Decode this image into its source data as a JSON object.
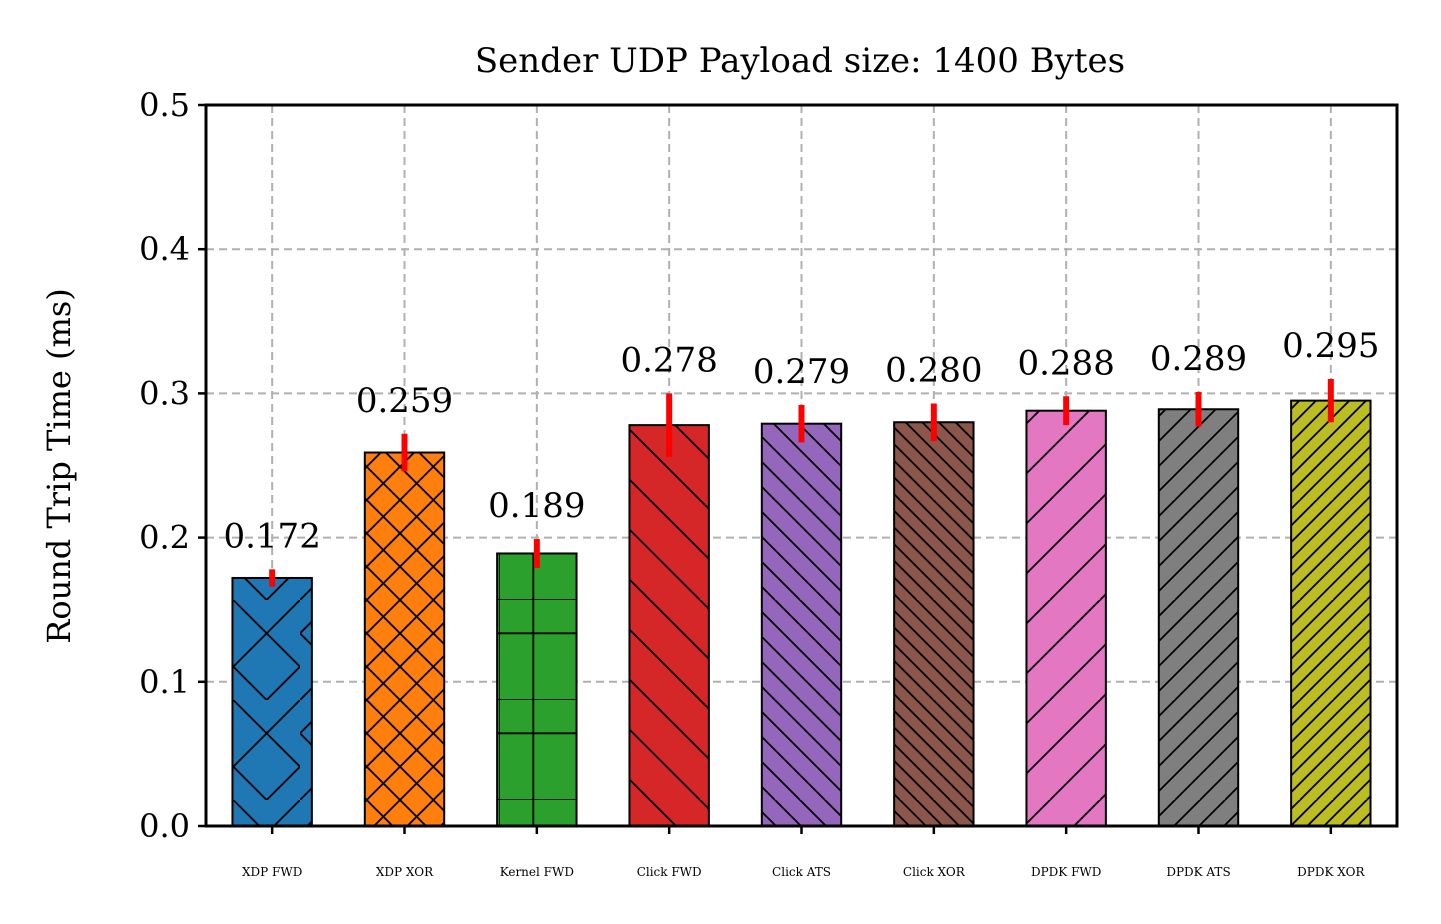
{
  "chart_data": {
    "type": "bar",
    "title": "Sender UDP Payload size: 1400 Bytes",
    "xlabel": "",
    "ylabel": "Round Trip Time (ms)",
    "ylim": [
      0,
      0.5
    ],
    "yticks": [
      "0.0",
      "0.1",
      "0.2",
      "0.3",
      "0.4",
      "0.5"
    ],
    "grid": true,
    "legend": "none",
    "categories": [
      "XDP FWD",
      "XDP XOR",
      "Kernel FWD",
      "Click FWD",
      "Click ATS",
      "Click XOR",
      "DPDK FWD",
      "DPDK ATS",
      "DPDK XOR"
    ],
    "values": [
      0.172,
      0.259,
      0.189,
      0.278,
      0.279,
      0.28,
      0.288,
      0.289,
      0.295
    ],
    "value_labels": [
      "0.172",
      "0.259",
      "0.189",
      "0.278",
      "0.279",
      "0.280",
      "0.288",
      "0.289",
      "0.295"
    ],
    "errors": [
      0.006,
      0.013,
      0.01,
      0.022,
      0.013,
      0.013,
      0.01,
      0.012,
      0.015
    ],
    "colors": [
      "#1f77b4",
      "#ff7f0e",
      "#2ca02c",
      "#d62728",
      "#9467bd",
      "#8c564b",
      "#e377c2",
      "#7f7f7f",
      "#bcbd22"
    ],
    "hatches": [
      "x",
      "xx",
      "+",
      "\\",
      "\\\\",
      "\\\\\\",
      "/",
      "//",
      "///"
    ],
    "error_color": "#ff0000",
    "grid_color": "#b0b0b0"
  }
}
